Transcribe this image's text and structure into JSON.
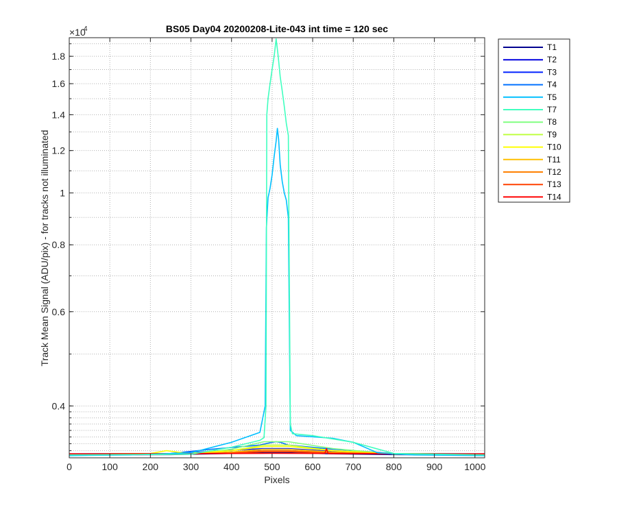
{
  "chart_data": {
    "type": "line",
    "title": "BS05 Day04 20200208-Lite-043 int time = 120 sec",
    "xlabel": "Pixels",
    "ylabel": "Track Mean Signal (ADU/pix) - for tracks not illuminated",
    "y_exponent_label": "×10",
    "y_exponent_power": "4",
    "y_scale": "log",
    "x_range": [
      0,
      1024
    ],
    "y_range": [
      3200,
      19500
    ],
    "x_ticks": [
      0,
      100,
      200,
      300,
      400,
      500,
      600,
      700,
      800,
      900,
      1000
    ],
    "x_tick_labels": [
      "0",
      "100",
      "200",
      "300",
      "400",
      "500",
      "600",
      "700",
      "800",
      "900",
      "1000"
    ],
    "y_ticks": [
      4000,
      6000,
      8000,
      10000,
      12000,
      14000,
      16000,
      18000
    ],
    "y_tick_labels": [
      "0.4",
      "0.6",
      "0.8",
      "1",
      "1.2",
      "1.4",
      "1.6",
      "1.8"
    ],
    "y_minor_grid": [
      3300,
      3400,
      3500,
      3600,
      3700,
      3800,
      3900,
      4000,
      5000,
      6000,
      7000,
      8000,
      9000,
      10000,
      11000,
      12000,
      13000,
      14000,
      15000,
      16000,
      17000,
      18000,
      19000
    ],
    "grid": "on (dotted major and minor)",
    "legend_position": "outside-top-right",
    "series": [
      {
        "name": "T1",
        "color": "#00008f",
        "x": [
          0,
          250,
          350,
          480,
          540,
          650,
          800,
          1024
        ],
        "y": [
          3240,
          3245,
          3255,
          3270,
          3270,
          3255,
          3245,
          3240
        ]
      },
      {
        "name": "T2",
        "color": "#0000df",
        "x": [
          0,
          250,
          350,
          480,
          540,
          650,
          800,
          1024
        ],
        "y": [
          3245,
          3250,
          3270,
          3300,
          3300,
          3270,
          3250,
          3245
        ]
      },
      {
        "name": "T3",
        "color": "#0020ff",
        "x": [
          0,
          250,
          350,
          480,
          540,
          650,
          800,
          1024
        ],
        "y": [
          3250,
          3258,
          3290,
          3330,
          3330,
          3290,
          3258,
          3250
        ]
      },
      {
        "name": "T4",
        "color": "#0070ff",
        "x": [
          0,
          250,
          350,
          470,
          500,
          510,
          520,
          540,
          560,
          650,
          800,
          1024
        ],
        "y": [
          3255,
          3260,
          3320,
          3380,
          3420,
          3430,
          3420,
          3380,
          3370,
          3320,
          3260,
          3255
        ]
      },
      {
        "name": "T5",
        "color": "#00bfff",
        "x": [
          0,
          150,
          300,
          400,
          470,
          483,
          486,
          490,
          495,
          500,
          505,
          510,
          513,
          516,
          520,
          525,
          530,
          535,
          540,
          545,
          560,
          650,
          700,
          760,
          850,
          1024
        ],
        "y": [
          3230,
          3240,
          3270,
          3420,
          3570,
          4000,
          8600,
          9800,
          10200,
          10800,
          11700,
          12500,
          13200,
          12600,
          11300,
          10500,
          10000,
          9700,
          9000,
          3600,
          3520,
          3480,
          3420,
          3270,
          3240,
          3230
        ]
      },
      {
        "name": "T7",
        "color": "#40ffbf",
        "x": [
          0,
          300,
          400,
          470,
          480,
          485,
          487,
          490,
          495,
          500,
          505,
          510,
          515,
          520,
          525,
          530,
          535,
          540,
          545,
          550,
          600,
          700,
          800,
          1024
        ],
        "y": [
          3240,
          3250,
          3350,
          3450,
          3490,
          4000,
          14000,
          15000,
          16000,
          17000,
          18000,
          19400,
          18000,
          16500,
          15500,
          14500,
          13500,
          12800,
          3700,
          3550,
          3520,
          3420,
          3260,
          3240
        ]
      },
      {
        "name": "T8",
        "color": "#80ff80",
        "x": [
          0,
          300,
          400,
          480,
          540,
          650,
          800,
          1024
        ],
        "y": [
          3240,
          3250,
          3320,
          3430,
          3430,
          3330,
          3250,
          3240
        ]
      },
      {
        "name": "T9",
        "color": "#bfff40",
        "x": [
          0,
          300,
          400,
          480,
          540,
          650,
          800,
          1024
        ],
        "y": [
          3245,
          3255,
          3300,
          3380,
          3380,
          3300,
          3255,
          3245
        ]
      },
      {
        "name": "T10",
        "color": "#ffff00",
        "x": [
          0,
          200,
          240,
          280,
          300,
          400,
          480,
          540,
          650,
          800,
          1024
        ],
        "y": [
          3250,
          3260,
          3300,
          3270,
          3265,
          3300,
          3360,
          3360,
          3300,
          3260,
          3250
        ]
      },
      {
        "name": "T11",
        "color": "#ffbf00",
        "x": [
          0,
          300,
          400,
          480,
          540,
          650,
          800,
          1024
        ],
        "y": [
          3245,
          3255,
          3280,
          3320,
          3320,
          3280,
          3255,
          3245
        ]
      },
      {
        "name": "T12",
        "color": "#ff8000",
        "x": [
          0,
          300,
          400,
          480,
          540,
          650,
          800,
          1024
        ],
        "y": [
          3248,
          3255,
          3270,
          3300,
          3300,
          3270,
          3255,
          3248
        ]
      },
      {
        "name": "T13",
        "color": "#ff4000",
        "x": [
          0,
          300,
          400,
          480,
          540,
          650,
          800,
          1024
        ],
        "y": [
          3252,
          3258,
          3265,
          3285,
          3285,
          3265,
          3258,
          3252
        ]
      },
      {
        "name": "T14",
        "color": "#ff0000",
        "x": [
          0,
          300,
          500,
          630,
          634,
          638,
          640,
          700,
          800,
          1024
        ],
        "y": [
          3255,
          3258,
          3262,
          3260,
          3330,
          3260,
          3258,
          3258,
          3256,
          3255
        ]
      }
    ]
  }
}
